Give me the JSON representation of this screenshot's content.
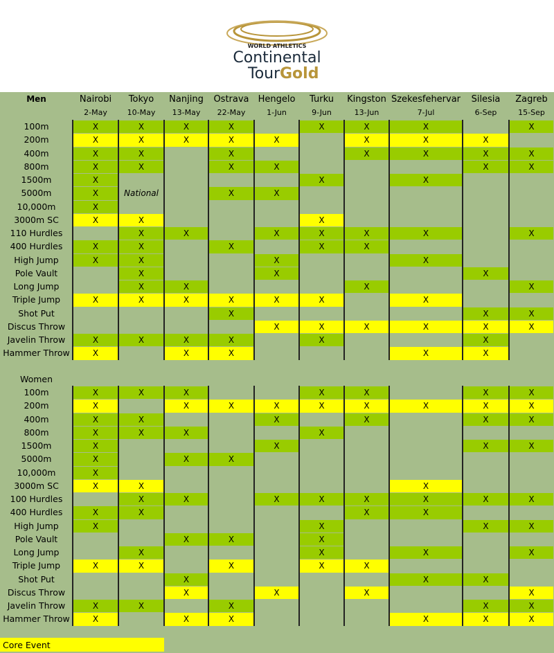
{
  "header": {
    "brand_small": "WORLD ATHLETICS",
    "brand_line1": "Continental",
    "brand_line2a": "Tour",
    "brand_line2b": "Gold"
  },
  "meetings": [
    {
      "city": "Nairobi",
      "date": "2-May"
    },
    {
      "city": "Tokyo",
      "date": "10-May"
    },
    {
      "city": "Nanjing",
      "date": "13-May"
    },
    {
      "city": "Ostrava",
      "date": "22-May"
    },
    {
      "city": "Hengelo",
      "date": "1-Jun"
    },
    {
      "city": "Turku",
      "date": "9-Jun"
    },
    {
      "city": "Kingston",
      "date": "13-Jun"
    },
    {
      "city": "Szekesfehervar",
      "date": "7-Jul"
    },
    {
      "city": "Silesia",
      "date": "6-Sep"
    },
    {
      "city": "Zagreb",
      "date": "15-Sep"
    }
  ],
  "colors": {
    "core": "#ffff00",
    "event": "#99cc00",
    "panel": "#a6bd8b"
  },
  "legend": {
    "label": "Core Event"
  },
  "men": {
    "title": "Men",
    "rows": [
      {
        "event": "100m",
        "cells": [
          "X",
          "X",
          "X",
          "X",
          null,
          "X",
          "X",
          "X",
          null,
          "X"
        ],
        "core": []
      },
      {
        "event": "200m",
        "cells": [
          "X",
          "X",
          "X",
          "X",
          "X",
          null,
          "X",
          "X",
          "X",
          null
        ],
        "core": [
          0,
          1,
          2,
          3,
          4,
          6,
          7,
          8
        ]
      },
      {
        "event": "400m",
        "cells": [
          "X",
          "X",
          null,
          "X",
          null,
          null,
          "X",
          "X",
          "X",
          "X"
        ],
        "core": []
      },
      {
        "event": "800m",
        "cells": [
          "X",
          "X",
          null,
          "X",
          "X",
          null,
          null,
          null,
          "X",
          "X"
        ],
        "core": []
      },
      {
        "event": "1500m",
        "cells": [
          "X",
          null,
          null,
          null,
          null,
          "X",
          null,
          "X",
          null,
          null
        ],
        "core": []
      },
      {
        "event": "5000m",
        "cells": [
          "X",
          "National",
          null,
          "X",
          "X",
          null,
          null,
          null,
          null,
          null
        ],
        "core": []
      },
      {
        "event": "10,000m",
        "cells": [
          "X",
          null,
          null,
          null,
          null,
          null,
          null,
          null,
          null,
          null
        ],
        "core": []
      },
      {
        "event": "3000m SC",
        "cells": [
          "X",
          "X",
          null,
          null,
          null,
          "X",
          null,
          null,
          null,
          null
        ],
        "core": [
          0,
          1,
          5
        ]
      },
      {
        "event": "110 Hurdles",
        "cells": [
          null,
          "X",
          "X",
          null,
          "X",
          "X",
          "X",
          "X",
          null,
          "X"
        ],
        "core": []
      },
      {
        "event": "400 Hurdles",
        "cells": [
          "X",
          "X",
          null,
          "X",
          null,
          "X",
          "X",
          null,
          null,
          null
        ],
        "core": []
      },
      {
        "event": "High Jump",
        "cells": [
          "X",
          "X",
          null,
          null,
          "X",
          null,
          null,
          "X",
          null,
          null
        ],
        "core": []
      },
      {
        "event": "Pole Vault",
        "cells": [
          null,
          "X",
          null,
          null,
          "X",
          null,
          null,
          null,
          "X",
          null
        ],
        "core": []
      },
      {
        "event": "Long Jump",
        "cells": [
          null,
          "X",
          "X",
          null,
          null,
          null,
          "X",
          null,
          null,
          "X"
        ],
        "core": []
      },
      {
        "event": "Triple Jump",
        "cells": [
          "X",
          "X",
          "X",
          "X",
          "X",
          "X",
          null,
          "X",
          null,
          null
        ],
        "core": [
          0,
          1,
          2,
          3,
          4,
          5,
          7
        ]
      },
      {
        "event": "Shot Put",
        "cells": [
          null,
          null,
          null,
          "X",
          null,
          null,
          null,
          null,
          "X",
          "X"
        ],
        "core": []
      },
      {
        "event": "Discus Throw",
        "cells": [
          null,
          null,
          null,
          null,
          "X",
          "X",
          "X",
          "X",
          "X",
          "X"
        ],
        "core": [
          4,
          5,
          6,
          7,
          8,
          9
        ]
      },
      {
        "event": "Javelin Throw",
        "cells": [
          "X",
          "X",
          "X",
          "X",
          null,
          "X",
          null,
          null,
          "X",
          null
        ],
        "core": []
      },
      {
        "event": "Hammer Throw",
        "cells": [
          "X",
          null,
          "X",
          "X",
          null,
          null,
          null,
          "X",
          "X",
          null
        ],
        "core": [
          0,
          2,
          3,
          7,
          8
        ]
      }
    ]
  },
  "women": {
    "title": "Women",
    "rows": [
      {
        "event": "100m",
        "cells": [
          "X",
          "X",
          "X",
          null,
          null,
          "X",
          "X",
          null,
          "X",
          "X"
        ],
        "core": []
      },
      {
        "event": "200m",
        "cells": [
          "X",
          null,
          "X",
          "X",
          "X",
          "X",
          "X",
          "X",
          "X",
          "X"
        ],
        "core": [
          0,
          2,
          3,
          4,
          5,
          6,
          7,
          8,
          9
        ]
      },
      {
        "event": "400m",
        "cells": [
          "X",
          "X",
          null,
          null,
          "X",
          null,
          "X",
          null,
          "X",
          "X"
        ],
        "core": []
      },
      {
        "event": "800m",
        "cells": [
          "X",
          "X",
          "X",
          null,
          null,
          "X",
          null,
          null,
          null,
          null
        ],
        "core": []
      },
      {
        "event": "1500m",
        "cells": [
          "X",
          null,
          null,
          null,
          "X",
          null,
          null,
          null,
          "X",
          "X"
        ],
        "core": []
      },
      {
        "event": "5000m",
        "cells": [
          "X",
          null,
          "X",
          "X",
          null,
          null,
          null,
          null,
          null,
          null
        ],
        "core": []
      },
      {
        "event": "10,000m",
        "cells": [
          "X",
          null,
          null,
          null,
          null,
          null,
          null,
          null,
          null,
          null
        ],
        "core": []
      },
      {
        "event": "3000m SC",
        "cells": [
          "X",
          "X",
          null,
          null,
          null,
          null,
          null,
          "X",
          null,
          null
        ],
        "core": [
          0,
          1,
          7
        ]
      },
      {
        "event": "100 Hurdles",
        "cells": [
          null,
          "X",
          "X",
          null,
          "X",
          "X",
          "X",
          "X",
          "X",
          "X"
        ],
        "core": []
      },
      {
        "event": "400 Hurdles",
        "cells": [
          "X",
          "X",
          null,
          null,
          null,
          null,
          "X",
          "X",
          null,
          null
        ],
        "core": []
      },
      {
        "event": "High Jump",
        "cells": [
          "X",
          null,
          null,
          null,
          null,
          "X",
          null,
          null,
          "X",
          "X"
        ],
        "core": []
      },
      {
        "event": "Pole Vault",
        "cells": [
          null,
          null,
          "X",
          "X",
          null,
          "X",
          null,
          null,
          null,
          null
        ],
        "core": []
      },
      {
        "event": "Long Jump",
        "cells": [
          null,
          "X",
          null,
          null,
          null,
          "X",
          null,
          "X",
          null,
          "X"
        ],
        "core": []
      },
      {
        "event": "Triple Jump",
        "cells": [
          "X",
          "X",
          null,
          "X",
          null,
          "X",
          "X",
          null,
          null,
          null
        ],
        "core": [
          0,
          1,
          3,
          5,
          6
        ]
      },
      {
        "event": "Shot Put",
        "cells": [
          null,
          null,
          "X",
          null,
          null,
          null,
          null,
          "X",
          "X",
          null
        ],
        "core": []
      },
      {
        "event": "Discus Throw",
        "cells": [
          null,
          null,
          "X",
          null,
          "X",
          null,
          "X",
          null,
          null,
          "X"
        ],
        "core": [
          2,
          4,
          6,
          9
        ]
      },
      {
        "event": "Javelin Throw",
        "cells": [
          "X",
          "X",
          null,
          "X",
          null,
          null,
          null,
          null,
          "X",
          "X"
        ],
        "core": []
      },
      {
        "event": "Hammer Throw",
        "cells": [
          "X",
          null,
          "X",
          "X",
          null,
          null,
          null,
          "X",
          "X",
          "X"
        ],
        "core": [
          0,
          2,
          3,
          7,
          8,
          9
        ]
      }
    ]
  }
}
